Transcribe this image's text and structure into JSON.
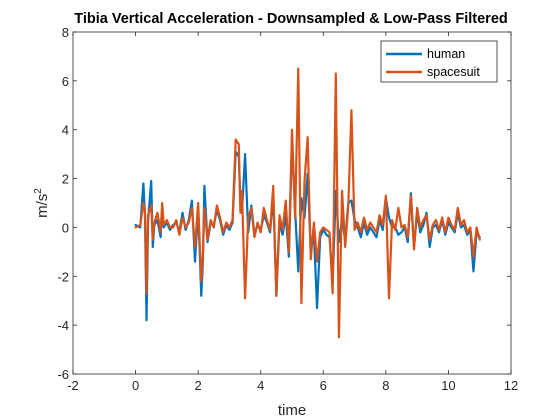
{
  "chart_data": {
    "type": "line",
    "title": "Tibia Vertical Acceleration - Downsampled & Low-Pass Filtered",
    "xlabel": "time",
    "ylabel_base": "m/s",
    "ylabel_exp": "2",
    "xlim": [
      -2,
      12
    ],
    "ylim": [
      -6,
      8
    ],
    "xticks": [
      -2,
      0,
      2,
      4,
      6,
      8,
      10,
      12
    ],
    "yticks": [
      -6,
      -4,
      -2,
      0,
      2,
      4,
      6,
      8
    ],
    "grid": false,
    "legend_position": "top-right",
    "series": [
      {
        "name": "human",
        "color": "#0072BD",
        "x": [
          0,
          0.15,
          0.25,
          0.3,
          0.35,
          0.4,
          0.5,
          0.55,
          0.6,
          0.7,
          0.8,
          0.85,
          0.9,
          1.0,
          1.1,
          1.2,
          1.3,
          1.4,
          1.5,
          1.6,
          1.7,
          1.8,
          1.9,
          2.0,
          2.1,
          2.15,
          2.2,
          2.3,
          2.4,
          2.5,
          2.6,
          2.7,
          2.8,
          2.9,
          3.0,
          3.1,
          3.2,
          3.3,
          3.35,
          3.4,
          3.5,
          3.6,
          3.7,
          3.8,
          3.9,
          4.0,
          4.1,
          4.2,
          4.3,
          4.4,
          4.5,
          4.6,
          4.7,
          4.8,
          4.9,
          5.0,
          5.1,
          5.2,
          5.3,
          5.4,
          5.5,
          5.6,
          5.7,
          5.8,
          5.9,
          6.0,
          6.1,
          6.2,
          6.3,
          6.4,
          6.5,
          6.6,
          6.7,
          6.8,
          6.9,
          7.0,
          7.1,
          7.2,
          7.3,
          7.4,
          7.5,
          7.6,
          7.7,
          7.8,
          7.9,
          8.0,
          8.1,
          8.2,
          8.3,
          8.4,
          8.5,
          8.6,
          8.7,
          8.8,
          8.9,
          9.0,
          9.1,
          9.2,
          9.3,
          9.4,
          9.5,
          9.6,
          9.7,
          9.8,
          9.9,
          10.0,
          10.1,
          10.2,
          10.3,
          10.4,
          10.5,
          10.6,
          10.7,
          10.8,
          10.9,
          11.0
        ],
        "y": [
          0.1,
          0.0,
          1.8,
          0.5,
          -3.8,
          0.3,
          1.9,
          -0.8,
          0.1,
          0.3,
          -0.4,
          0.8,
          0.0,
          0.2,
          -0.1,
          0.1,
          0.2,
          -0.2,
          0.6,
          -0.1,
          0.3,
          1.1,
          -1.4,
          0.8,
          -2.8,
          -1.5,
          1.7,
          -0.6,
          0.2,
          0.1,
          0.7,
          0.3,
          -0.3,
          0.1,
          -0.1,
          0.2,
          3.1,
          2.9,
          1.0,
          0.6,
          3.0,
          -0.2,
          0.9,
          -0.3,
          0.1,
          -0.1,
          0.5,
          0.2,
          -0.2,
          1.3,
          -2.8,
          0.2,
          -0.3,
          0.5,
          -1.2,
          3.5,
          0.7,
          -1.8,
          1.2,
          0.4,
          2.2,
          -1.0,
          -0.2,
          -3.3,
          -0.4,
          -0.1,
          -0.3,
          -0.4,
          -2.2,
          1.5,
          -0.6,
          0.3,
          -0.5,
          1.0,
          1.1,
          0.3,
          0.0,
          -0.4,
          0.2,
          -0.3,
          0.0,
          -0.2,
          -0.4,
          0.3,
          -0.1,
          1.2,
          0.4,
          0.0,
          0.0,
          -0.3,
          -0.2,
          0.0,
          -0.6,
          1.4,
          -0.8,
          0.6,
          -0.2,
          0.1,
          0.6,
          -0.8,
          0.0,
          0.1,
          -0.2,
          0.3,
          -0.3,
          0.2,
          0.0,
          -0.2,
          0.6,
          0.0,
          0.1,
          -0.3,
          -0.1,
          -1.8,
          -0.2,
          -0.4
        ]
      },
      {
        "name": "spacesuit",
        "color": "#D95319",
        "x": [
          0,
          0.15,
          0.25,
          0.3,
          0.35,
          0.4,
          0.5,
          0.55,
          0.6,
          0.7,
          0.8,
          0.85,
          0.9,
          1.0,
          1.1,
          1.2,
          1.3,
          1.4,
          1.5,
          1.6,
          1.7,
          1.8,
          1.9,
          2.0,
          2.1,
          2.15,
          2.2,
          2.3,
          2.4,
          2.5,
          2.6,
          2.7,
          2.8,
          2.9,
          3.0,
          3.1,
          3.2,
          3.3,
          3.35,
          3.4,
          3.5,
          3.6,
          3.7,
          3.8,
          3.9,
          4.0,
          4.1,
          4.2,
          4.3,
          4.4,
          4.5,
          4.6,
          4.7,
          4.8,
          4.9,
          5.0,
          5.1,
          5.2,
          5.3,
          5.4,
          5.5,
          5.6,
          5.7,
          5.8,
          5.9,
          6.0,
          6.1,
          6.2,
          6.3,
          6.4,
          6.5,
          6.6,
          6.7,
          6.8,
          6.9,
          7.0,
          7.1,
          7.2,
          7.3,
          7.4,
          7.5,
          7.6,
          7.7,
          7.8,
          7.9,
          8.0,
          8.1,
          8.2,
          8.3,
          8.4,
          8.5,
          8.6,
          8.7,
          8.8,
          8.9,
          9.0,
          9.1,
          9.2,
          9.3,
          9.4,
          9.5,
          9.6,
          9.7,
          9.8,
          9.9,
          10.0,
          10.1,
          10.2,
          10.3,
          10.4,
          10.5,
          10.6,
          10.7,
          10.8,
          10.9,
          11.0
        ],
        "y": [
          0.0,
          0.1,
          1.0,
          0.7,
          -2.7,
          0.5,
          0.9,
          -0.5,
          0.2,
          0.6,
          -0.2,
          1.0,
          0.1,
          0.3,
          0.0,
          0.0,
          0.3,
          -0.3,
          0.4,
          0.0,
          0.2,
          0.8,
          -0.8,
          1.0,
          -2.2,
          -1.2,
          0.8,
          -0.5,
          0.3,
          0.0,
          0.9,
          0.4,
          -0.2,
          0.2,
          0.0,
          0.3,
          3.6,
          3.4,
          0.6,
          1.5,
          -2.9,
          0.4,
          0.8,
          -0.4,
          0.2,
          -0.2,
          0.8,
          0.3,
          -0.1,
          1.7,
          -2.8,
          0.5,
          -0.1,
          1.1,
          -1.0,
          4.0,
          0.4,
          6.5,
          -3.1,
          1.9,
          3.7,
          -1.3,
          0.2,
          -1.4,
          -0.2,
          0.0,
          -0.1,
          -0.2,
          -2.7,
          6.3,
          -4.5,
          1.5,
          -0.8,
          0.9,
          4.8,
          -0.1,
          0.2,
          -0.2,
          0.4,
          -0.1,
          0.2,
          0.0,
          -0.2,
          0.5,
          0.1,
          1.3,
          -2.9,
          0.3,
          -0.1,
          0.8,
          0.0,
          0.1,
          -0.4,
          1.3,
          -0.9,
          0.8,
          0.0,
          0.3,
          0.5,
          -0.5,
          0.1,
          0.3,
          -0.1,
          0.4,
          -0.2,
          0.4,
          0.1,
          -0.1,
          0.8,
          0.1,
          0.3,
          -0.2,
          0.0,
          -1.2,
          0.0,
          -0.5
        ]
      }
    ]
  }
}
